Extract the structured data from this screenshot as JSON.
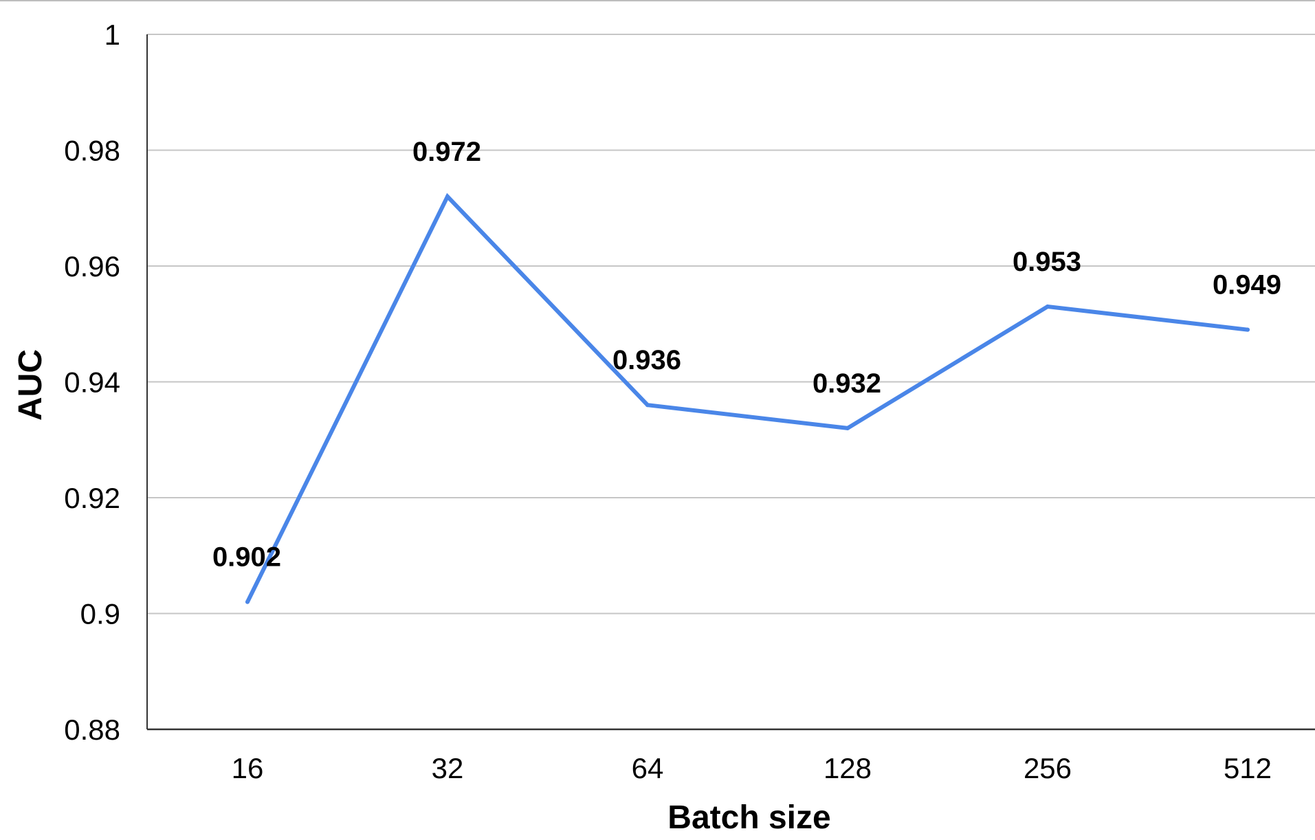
{
  "chart_data": {
    "type": "line",
    "categories": [
      "16",
      "32",
      "64",
      "128",
      "256",
      "512"
    ],
    "series": [
      {
        "values": [
          0.902,
          0.972,
          0.936,
          0.932,
          0.953,
          0.949
        ],
        "color": "#4a86e8"
      }
    ],
    "data_labels": [
      "0.902",
      "0.972",
      "0.936",
      "0.932",
      "0.953",
      "0.949"
    ],
    "xlabel": "Batch size",
    "ylabel": "AUC",
    "ylim": [
      0.88,
      1
    ],
    "yticks": [
      0.88,
      0.9,
      0.92,
      0.94,
      0.96,
      0.98,
      1
    ],
    "ytick_labels": [
      "0.88",
      "0.9",
      "0.92",
      "0.94",
      "0.96",
      "0.98",
      "1"
    ],
    "grid": true,
    "legend": "none"
  }
}
